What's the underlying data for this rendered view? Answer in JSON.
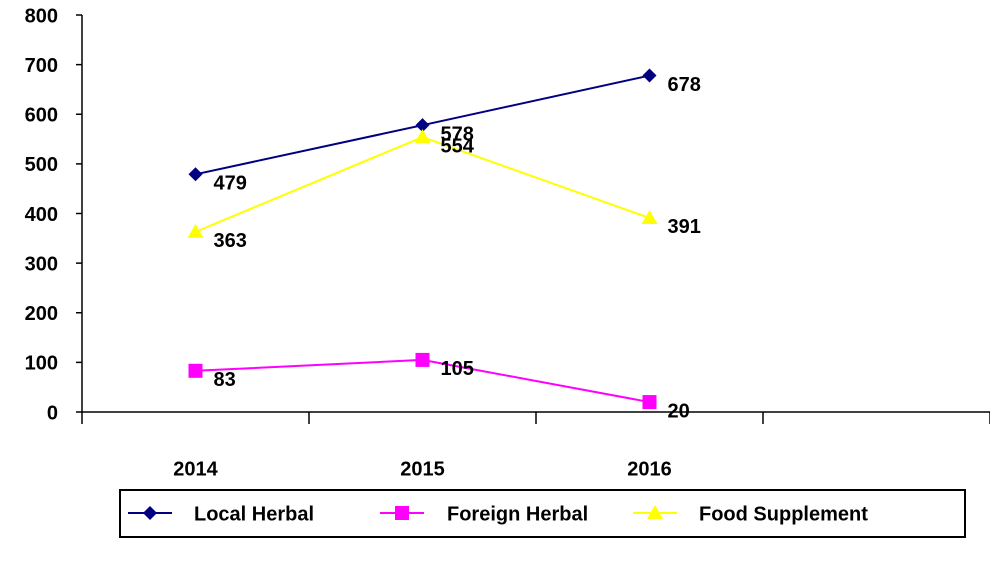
{
  "chart_data": {
    "type": "line",
    "categories": [
      "2014",
      "2015",
      "2016",
      null
    ],
    "series": [
      {
        "name": "Local Herbal",
        "color": "#000080",
        "marker": "diamond",
        "values": [
          479,
          578,
          678,
          null
        ]
      },
      {
        "name": "Foreign Herbal",
        "color": "#ff00ff",
        "marker": "square",
        "values": [
          83,
          105,
          20,
          null
        ]
      },
      {
        "name": "Food Supplement",
        "color": "#ffff00",
        "marker": "triangle",
        "values": [
          363,
          554,
          391,
          null
        ]
      }
    ],
    "ylim": [
      0,
      800
    ],
    "yticks": [
      0,
      100,
      200,
      300,
      400,
      500,
      600,
      700,
      800
    ],
    "grid": false,
    "legend": "bottom"
  }
}
